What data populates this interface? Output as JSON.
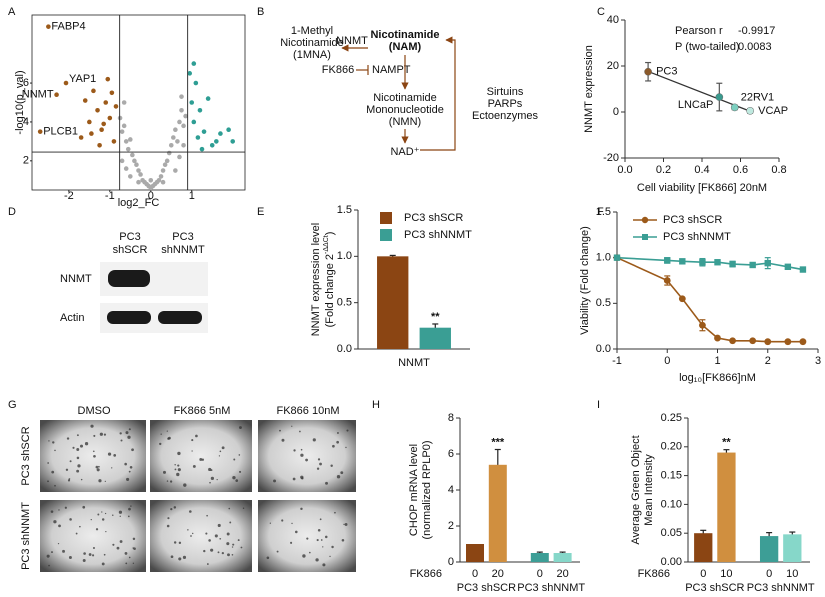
{
  "chart_data": [
    {
      "type": "volcano",
      "panel": "A",
      "x_label": "log2_FC",
      "y_label": "-log10(p_val)",
      "xlim": [
        -2.9,
        2.3
      ],
      "ylim": [
        0.5,
        9.5
      ],
      "xticks": [
        -2,
        -1,
        0,
        1
      ],
      "yticks": [
        2,
        4,
        6
      ],
      "vlines": [
        -0.76,
        0.9
      ],
      "hline": 2.45,
      "series": [
        {
          "color": "#aaaaaa",
          "x": [
            -0.75,
            -0.7,
            -0.65,
            -0.6,
            -0.55,
            -0.5,
            -0.45,
            -0.4,
            -0.35,
            -0.3,
            -0.25,
            -0.2,
            -0.15,
            -0.1,
            -0.05,
            0,
            0.05,
            0.1,
            0.15,
            0.2,
            0.25,
            0.3,
            0.35,
            0.4,
            0.45,
            0.5,
            0.55,
            0.6,
            0.65,
            0.7,
            0.75,
            0.8,
            0.85,
            -0.7,
            -0.6,
            -0.5,
            0.6,
            0.7,
            0.8,
            -0.3,
            0.3,
            0.0,
            -0.65,
            0.75
          ],
          "y": [
            4.2,
            3.5,
            3.8,
            3.0,
            2.6,
            3.1,
            2.3,
            2.0,
            1.8,
            1.5,
            1.3,
            1.0,
            0.9,
            0.8,
            0.7,
            0.6,
            0.7,
            0.8,
            0.9,
            1.0,
            1.2,
            1.5,
            1.8,
            2.0,
            2.4,
            2.8,
            3.2,
            3.6,
            3.0,
            4.0,
            4.6,
            3.8,
            4.3,
            2.0,
            1.6,
            1.2,
            1.5,
            2.2,
            2.8,
            0.9,
            0.9,
            1.0,
            5.0,
            5.3
          ]
        },
        {
          "color": "#9c5a1a",
          "x": [
            -0.9,
            -1.0,
            -1.1,
            -1.2,
            -1.3,
            -1.4,
            -1.5,
            -1.6,
            -1.7,
            -0.85,
            -1.05,
            -1.25,
            -1.45,
            -0.95,
            -1.15
          ],
          "y": [
            3.0,
            4.2,
            5.0,
            3.6,
            4.6,
            5.6,
            4.0,
            5.1,
            3.2,
            4.8,
            6.2,
            2.8,
            3.4,
            5.5,
            3.9
          ]
        },
        {
          "color": "#2e9e94",
          "x": [
            0.95,
            1.0,
            1.05,
            1.1,
            1.15,
            1.2,
            1.3,
            1.4,
            1.5,
            1.6,
            1.7,
            1.9,
            2.0,
            1.25,
            1.05
          ],
          "y": [
            6.5,
            5.0,
            4.0,
            6.0,
            3.2,
            4.6,
            3.5,
            5.2,
            2.8,
            3.0,
            3.4,
            3.6,
            3.0,
            2.6,
            7.0
          ]
        },
        {
          "color": "#9c5a1a",
          "labels": [
            "FABP4",
            "YAP1",
            "NNMT",
            "PLCB1"
          ],
          "x": [
            -2.5,
            -2.07,
            -2.3,
            -2.7
          ],
          "y": [
            8.9,
            6.0,
            5.4,
            3.5
          ]
        }
      ]
    },
    {
      "type": "scatter",
      "panel": "C",
      "x_label": "Cell viability [FK866] 20nM",
      "y_label": "NNMT expression",
      "xlim": [
        0,
        0.8
      ],
      "ylim": [
        -20,
        40
      ],
      "xticks": [
        {
          "value": 0,
          "label": "0.0"
        },
        0.2,
        0.4,
        0.6,
        0.8
      ],
      "yticks": [
        -20,
        0,
        20,
        40
      ],
      "stats": [
        {
          "label": "Pearson r",
          "value": -0.9917
        },
        {
          "label": "P (two-tailed)",
          "value": 0.0083
        }
      ],
      "fit_color": "#333333",
      "points": [
        {
          "label": "PC3",
          "x": 0.12,
          "y": 17.5,
          "error": 4,
          "color": "#8b5a2b"
        },
        {
          "label": "LNCaP",
          "x": 0.49,
          "y": 6.5,
          "error": 6,
          "color": "#3a9a8e"
        },
        {
          "label": "22RV1",
          "x": 0.57,
          "y": 2,
          "error": 1,
          "color": "#7ccfbf"
        },
        {
          "label": "VCAP",
          "x": 0.65,
          "y": 0.5,
          "error": 1,
          "color": "#bfe9df"
        }
      ]
    },
    {
      "type": "bar",
      "panel": "E",
      "y_label": "NNMT expression level",
      "y_label_2": "(Fold change 2",
      "y_label_sup": "-ΔΔCt",
      "y_label_end": ")",
      "categories": [
        "NNMT"
      ],
      "ylim": [
        0,
        1.5
      ],
      "yticks": [
        {
          "value": 0,
          "label": "0.0"
        },
        0.5,
        {
          "value": 1,
          "label": "1.0"
        },
        1.5
      ],
      "legend": "upper left",
      "series": [
        {
          "name": "PC3 shSCR",
          "color": "#8b4513",
          "values": [
            1.0
          ],
          "errors": [
            0.01
          ]
        },
        {
          "name": "PC3 shNNMT",
          "color": "#3a9e94",
          "values": [
            0.23
          ],
          "errors": [
            0.04
          ],
          "annotations": [
            "**"
          ]
        }
      ]
    },
    {
      "type": "line",
      "panel": "F",
      "x_label": "log₁₀[FK866]nM",
      "y_label": "Viability (Fold change)",
      "xlim": [
        -1,
        3
      ],
      "ylim": [
        0,
        1.5
      ],
      "xticks": [
        -1,
        0,
        1,
        2,
        3
      ],
      "yticks": [
        {
          "value": 0,
          "label": "0.0"
        },
        0.5,
        {
          "value": 1,
          "label": "1.0"
        },
        1.5
      ],
      "legend": "upper left",
      "series": [
        {
          "name": "PC3 shSCR",
          "color": "#9c5a1a",
          "marker": "circle",
          "x": [
            -1,
            0,
            0.3,
            0.7,
            1,
            1.3,
            1.7,
            2,
            2.4,
            2.7
          ],
          "values": [
            1,
            0.75,
            0.55,
            0.26,
            0.12,
            0.09,
            0.09,
            0.08,
            0.08,
            0.08
          ],
          "errors": [
            null,
            0.05,
            null,
            0.06,
            null,
            null,
            null,
            null,
            null,
            null
          ]
        },
        {
          "name": "PC3 shNNMT",
          "color": "#3a9e94",
          "marker": "square",
          "x": [
            -1,
            0,
            0.3,
            0.7,
            1,
            1.3,
            1.7,
            2,
            2.4,
            2.7
          ],
          "values": [
            1,
            0.97,
            0.96,
            0.95,
            0.95,
            0.93,
            0.92,
            0.94,
            0.9,
            0.87
          ],
          "errors": [
            null,
            0.03,
            null,
            0.04,
            null,
            0.03,
            null,
            0.06,
            null,
            null
          ]
        }
      ]
    },
    {
      "type": "bar",
      "panel": "H",
      "y_label": "CHOP mRNA level",
      "y_label_2": "(normalized RPLP0)",
      "ylim": [
        0,
        8
      ],
      "yticks": [
        0,
        2,
        4,
        6,
        8
      ],
      "row_label": "FK866",
      "groups": [
        {
          "name": "PC3 shSCR",
          "color": "#a0601e",
          "categories": [
            "0",
            "20"
          ],
          "colors": [
            "#8b4513",
            "#d08f3f"
          ],
          "values": [
            1.0,
            5.4
          ],
          "errors": [
            null,
            0.85
          ],
          "annotations": [
            null,
            "***"
          ]
        },
        {
          "name": "PC3 shNNMT",
          "color": "#3a9e94",
          "categories": [
            "0",
            "20"
          ],
          "colors": [
            "#3d9e96",
            "#86d7c9"
          ],
          "values": [
            0.5,
            0.5
          ],
          "errors": [
            0.05,
            0.05
          ]
        }
      ]
    },
    {
      "type": "bar",
      "panel": "I",
      "y_label": "Average Green Object",
      "y_label_2": "Mean Intensity",
      "ylim": [
        0,
        0.25
      ],
      "yticks": [
        {
          "value": 0,
          "label": "0.00"
        },
        0.05,
        {
          "value": 0.1,
          "label": "0.10"
        },
        0.15,
        {
          "value": 0.2,
          "label": "0.20"
        },
        0.25
      ],
      "row_label": "FK866",
      "groups": [
        {
          "name": "PC3 shSCR",
          "color": "#a0601e",
          "categories": [
            "0",
            "10"
          ],
          "colors": [
            "#8b4513",
            "#d08f3f"
          ],
          "values": [
            0.05,
            0.19
          ],
          "errors": [
            0.005,
            0.005
          ],
          "annotations": [
            null,
            "**"
          ]
        },
        {
          "name": "PC3 shNNMT",
          "color": "#3a9e94",
          "categories": [
            "0",
            "10"
          ],
          "colors": [
            "#3d9e96",
            "#86d7c9"
          ],
          "values": [
            0.045,
            0.048
          ],
          "errors": [
            0.006,
            0.004
          ]
        }
      ]
    }
  ],
  "diagram": {
    "panel": "B",
    "nodes": {
      "mna": [
        "1-Methyl",
        "Nicotinamide",
        "(1MNA)"
      ],
      "nam": [
        "Nicotinamide",
        "(NAM)"
      ],
      "nmn": [
        "Nicotinamide",
        "Mononucleotide",
        "(NMN)"
      ],
      "nad": "NAD⁺",
      "consumers": [
        "Sirtuins",
        "PARPs",
        "Ectoenzymes"
      ]
    },
    "enzymes": {
      "nnmt": "NNMT",
      "nampt": "NAMPT",
      "inhibitor": "FK866"
    }
  },
  "blot": {
    "panel": "D",
    "lanes": [
      {
        "lines": [
          "PC3",
          "shSCR"
        ],
        "color": "#9c5a1a"
      },
      {
        "lines": [
          "PC3",
          "shNNMT"
        ],
        "color": "#3a9e94"
      }
    ],
    "rows": [
      "NNMT",
      "Actin"
    ]
  },
  "images": {
    "panel": "G",
    "columns": [
      "DMSO",
      "FK866 5nM",
      "FK866 10nM"
    ],
    "rows": [
      {
        "label": "PC3 shSCR",
        "color": "#9c5a1a"
      },
      {
        "label": "PC3 shNNMT",
        "color": "#3a9e94"
      }
    ]
  }
}
